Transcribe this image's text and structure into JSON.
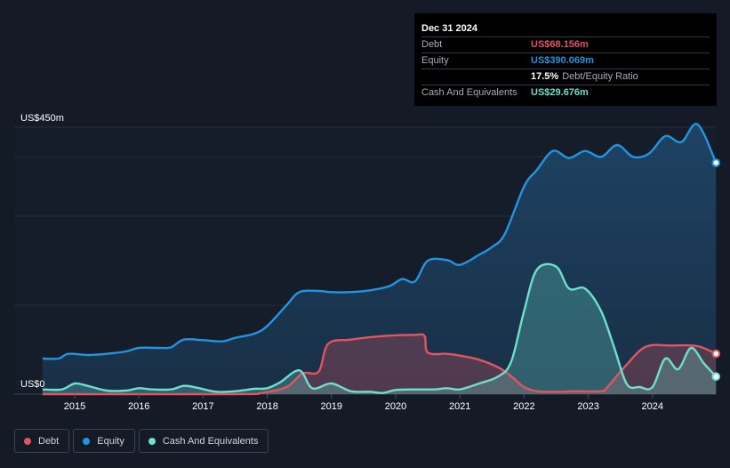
{
  "chart_data": {
    "type": "area",
    "ylim": [
      0,
      450
    ],
    "y_top_label": "US$450m",
    "y_bottom_label": "US$0",
    "x_ticks": [
      "2015",
      "2016",
      "2017",
      "2018",
      "2019",
      "2020",
      "2021",
      "2022",
      "2023",
      "2024"
    ],
    "series": [
      {
        "name": "Debt",
        "color": "#e05561",
        "points": [
          [
            2014.5,
            0
          ],
          [
            2017.5,
            0
          ],
          [
            2017.9,
            2
          ],
          [
            2018.3,
            12
          ],
          [
            2018.55,
            35
          ],
          [
            2018.8,
            38
          ],
          [
            2018.95,
            85
          ],
          [
            2019.3,
            92
          ],
          [
            2019.8,
            98
          ],
          [
            2020.3,
            100
          ],
          [
            2020.45,
            98
          ],
          [
            2020.5,
            70
          ],
          [
            2020.8,
            68
          ],
          [
            2021.0,
            65
          ],
          [
            2021.3,
            58
          ],
          [
            2021.6,
            45
          ],
          [
            2021.8,
            30
          ],
          [
            2022.0,
            12
          ],
          [
            2022.2,
            5
          ],
          [
            2022.5,
            4
          ],
          [
            2022.8,
            5
          ],
          [
            2023.2,
            5
          ],
          [
            2023.3,
            12
          ],
          [
            2023.6,
            50
          ],
          [
            2023.9,
            80
          ],
          [
            2024.3,
            82
          ],
          [
            2024.7,
            81
          ],
          [
            2024.99,
            68.156
          ]
        ]
      },
      {
        "name": "Equity",
        "color": "#2394df",
        "points": [
          [
            2014.5,
            60
          ],
          [
            2014.75,
            60
          ],
          [
            2014.9,
            68
          ],
          [
            2015.2,
            66
          ],
          [
            2015.5,
            68
          ],
          [
            2015.8,
            72
          ],
          [
            2016.0,
            78
          ],
          [
            2016.3,
            78
          ],
          [
            2016.5,
            79
          ],
          [
            2016.7,
            92
          ],
          [
            2017.0,
            91
          ],
          [
            2017.3,
            89
          ],
          [
            2017.5,
            95
          ],
          [
            2017.8,
            102
          ],
          [
            2018.0,
            115
          ],
          [
            2018.3,
            150
          ],
          [
            2018.5,
            172
          ],
          [
            2018.8,
            174
          ],
          [
            2019.0,
            172
          ],
          [
            2019.3,
            172
          ],
          [
            2019.6,
            175
          ],
          [
            2019.9,
            182
          ],
          [
            2020.1,
            194
          ],
          [
            2020.3,
            190
          ],
          [
            2020.5,
            225
          ],
          [
            2020.8,
            226
          ],
          [
            2021.0,
            218
          ],
          [
            2021.3,
            235
          ],
          [
            2021.5,
            248
          ],
          [
            2021.7,
            270
          ],
          [
            2022.0,
            350
          ],
          [
            2022.2,
            378
          ],
          [
            2022.45,
            410
          ],
          [
            2022.7,
            398
          ],
          [
            2022.95,
            410
          ],
          [
            2023.2,
            400
          ],
          [
            2023.45,
            420
          ],
          [
            2023.7,
            400
          ],
          [
            2023.95,
            406
          ],
          [
            2024.2,
            435
          ],
          [
            2024.45,
            425
          ],
          [
            2024.7,
            455
          ],
          [
            2024.99,
            390.069
          ]
        ]
      },
      {
        "name": "Cash And Equivalents",
        "color": "#6ddfcb",
        "points": [
          [
            2014.5,
            8
          ],
          [
            2014.8,
            8
          ],
          [
            2015.0,
            18
          ],
          [
            2015.2,
            14
          ],
          [
            2015.5,
            6
          ],
          [
            2015.8,
            6
          ],
          [
            2016.0,
            10
          ],
          [
            2016.2,
            8
          ],
          [
            2016.5,
            8
          ],
          [
            2016.7,
            14
          ],
          [
            2016.9,
            11
          ],
          [
            2017.2,
            4
          ],
          [
            2017.5,
            5
          ],
          [
            2017.8,
            9
          ],
          [
            2018.0,
            10
          ],
          [
            2018.2,
            20
          ],
          [
            2018.5,
            40
          ],
          [
            2018.7,
            10
          ],
          [
            2019.0,
            18
          ],
          [
            2019.3,
            5
          ],
          [
            2019.6,
            4
          ],
          [
            2019.8,
            2
          ],
          [
            2020.0,
            7
          ],
          [
            2020.3,
            8
          ],
          [
            2020.6,
            8
          ],
          [
            2020.8,
            10
          ],
          [
            2021.0,
            8
          ],
          [
            2021.3,
            18
          ],
          [
            2021.6,
            30
          ],
          [
            2021.8,
            55
          ],
          [
            2022.0,
            140
          ],
          [
            2022.2,
            210
          ],
          [
            2022.5,
            215
          ],
          [
            2022.7,
            178
          ],
          [
            2022.95,
            178
          ],
          [
            2023.2,
            140
          ],
          [
            2023.4,
            80
          ],
          [
            2023.6,
            17
          ],
          [
            2023.8,
            12
          ],
          [
            2024.0,
            12
          ],
          [
            2024.2,
            60
          ],
          [
            2024.4,
            42
          ],
          [
            2024.6,
            78
          ],
          [
            2024.8,
            52
          ],
          [
            2024.99,
            29.676
          ]
        ]
      }
    ],
    "tooltip": {
      "date": "Dec 31 2024",
      "rows": [
        {
          "label": "Debt",
          "value": "US$68.156m",
          "color": "#e05561"
        },
        {
          "label": "Equity",
          "value": "US$390.069m",
          "color": "#2394df"
        },
        {
          "label": "",
          "value": "17.5%",
          "suffix": "Debt/Equity Ratio",
          "color": "#ffffff"
        },
        {
          "label": "Cash And Equivalents",
          "value": "US$29.676m",
          "color": "#6ddfcb"
        }
      ]
    },
    "legend": [
      {
        "label": "Debt",
        "color": "#e05561"
      },
      {
        "label": "Equity",
        "color": "#2394df"
      },
      {
        "label": "Cash And Equivalents",
        "color": "#6ddfcb"
      }
    ]
  }
}
